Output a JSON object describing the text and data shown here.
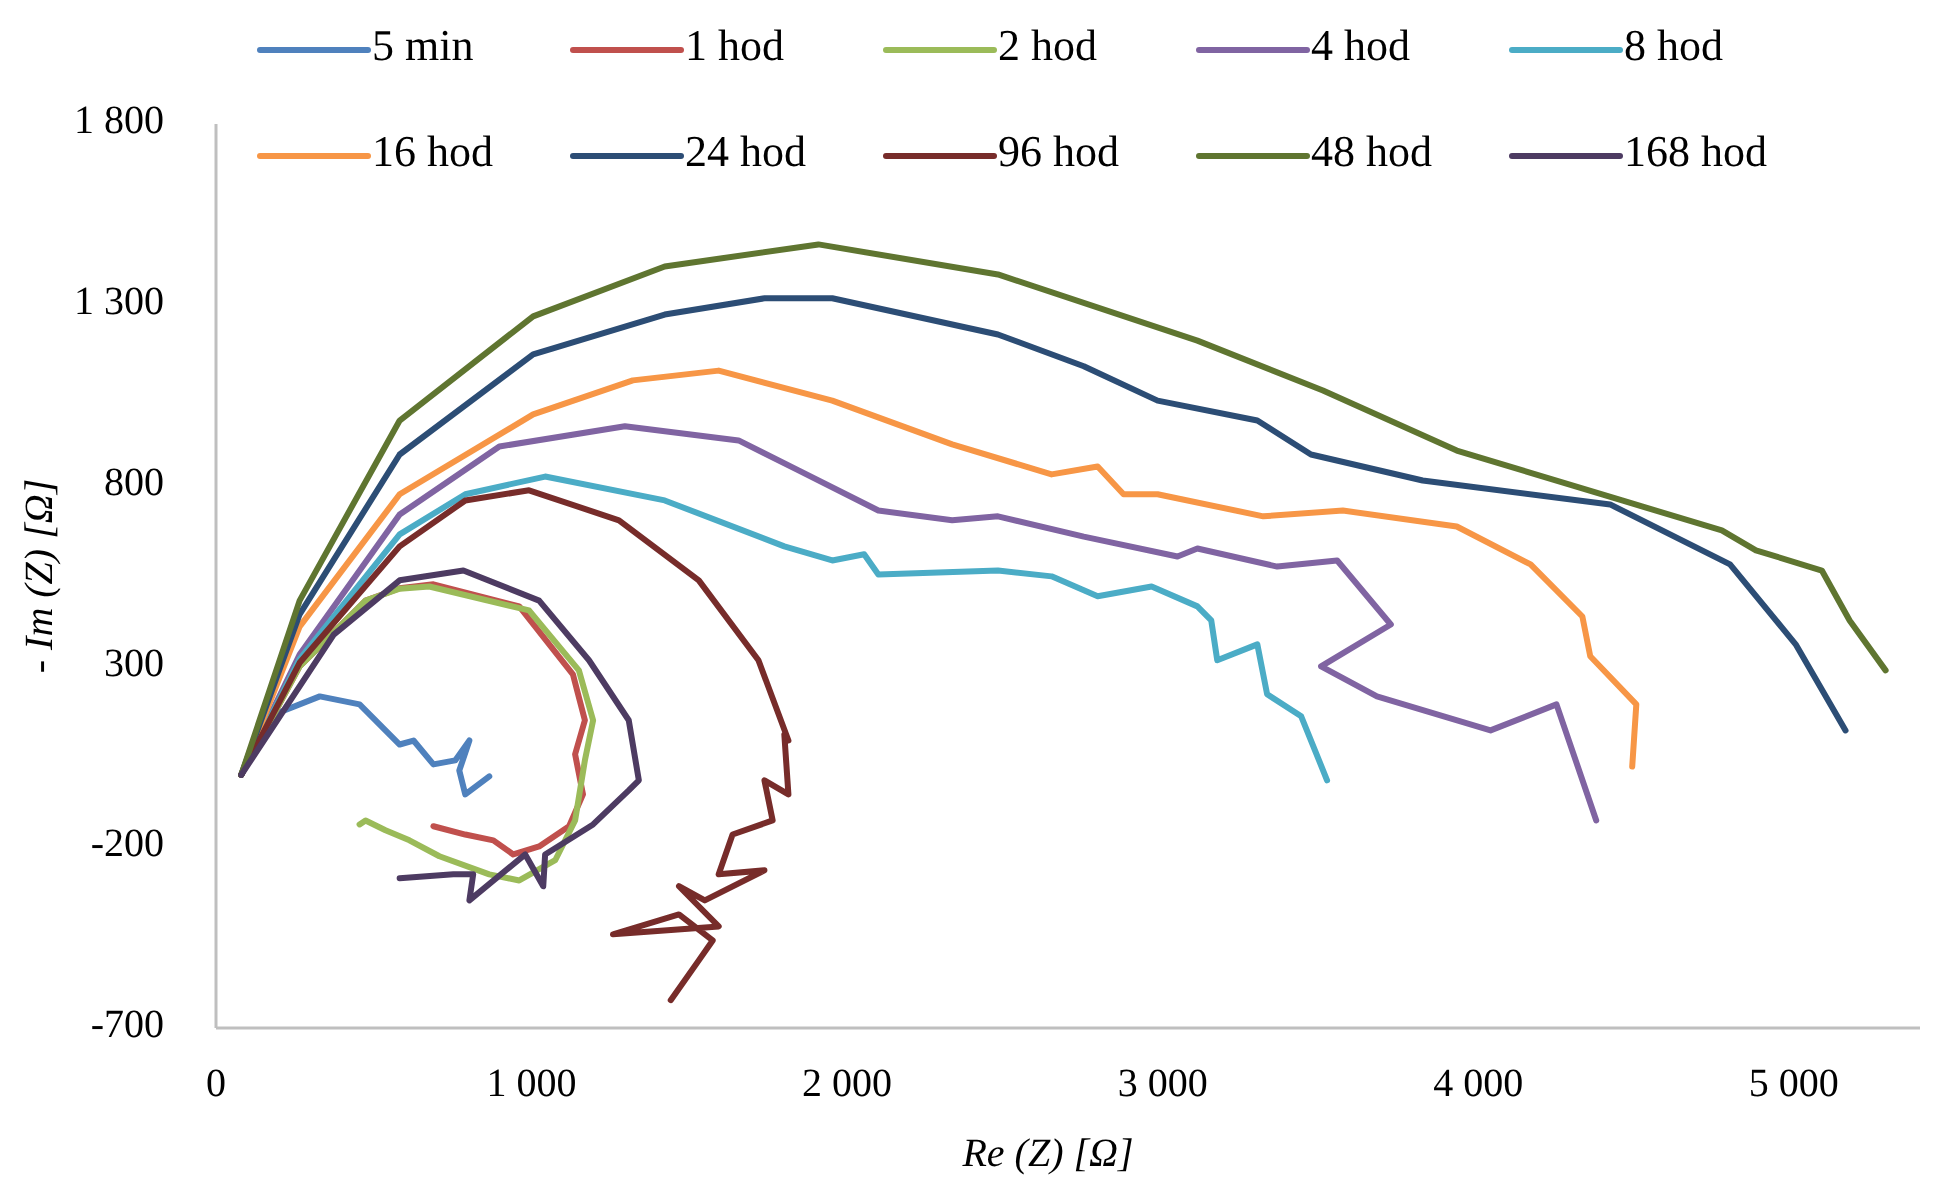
{
  "chart_data": {
    "type": "line",
    "xlabel": "Re (Z) [Ω]",
    "ylabel": "- Im (Z) [Ω]",
    "xlim": [
      0,
      5400
    ],
    "ylim": [
      -700,
      1800
    ],
    "xticks": [
      0,
      {
        "value": 1000,
        "label": "1 000"
      },
      {
        "value": 2000,
        "label": "2 000"
      },
      {
        "value": 3000,
        "label": "3 000"
      },
      {
        "value": 4000,
        "label": "4 000"
      },
      {
        "value": 5000,
        "label": "5 000"
      }
    ],
    "yticks": [
      -700,
      -200,
      300,
      800,
      {
        "value": 1300,
        "label": "1 300"
      },
      {
        "value": 1800,
        "label": "1 800"
      }
    ],
    "grid": false,
    "legend": "top",
    "marker": "none",
    "line_style": "solid",
    "series": [
      {
        "name": "5 min",
        "color": "#4f81bd",
        "x": [
          80,
          126,
          202,
          329,
          455,
          582,
          626,
          689,
          758,
          803,
          771,
          790,
          866
        ],
        "values": [
          0,
          95,
          173,
          217,
          195,
          84,
          95,
          29,
          40,
          95,
          12,
          -54,
          -4
        ]
      },
      {
        "name": "1 hod",
        "color": "#c0504d",
        "x": [
          80,
          265,
          474,
          582,
          689,
          961,
          1131,
          1169,
          1138,
          1163,
          1119,
          1024,
          942,
          879,
          790,
          689
        ],
        "values": [
          0,
          300,
          482,
          516,
          527,
          466,
          278,
          151,
          57,
          -54,
          -142,
          -198,
          -220,
          -181,
          -165,
          -142
        ]
      },
      {
        "name": "2 hod",
        "color": "#9bbb59",
        "x": [
          80,
          265,
          474,
          582,
          676,
          992,
          1150,
          1195,
          1169,
          1138,
          1075,
          961,
          866,
          708,
          613,
          537,
          474,
          455
        ],
        "values": [
          0,
          300,
          482,
          515,
          521,
          455,
          289,
          151,
          40,
          -126,
          -236,
          -292,
          -275,
          -225,
          -181,
          -153,
          -126,
          -137
        ]
      },
      {
        "name": "4 hod",
        "color": "#8064a2",
        "x": [
          80,
          265,
          582,
          898,
          1296,
          1656,
          1846,
          2099,
          2333,
          2478,
          2750,
          3047,
          3110,
          3363,
          3553,
          3723,
          3502,
          3679,
          4039,
          4248,
          4374
        ],
        "values": [
          0,
          333,
          720,
          908,
          964,
          925,
          842,
          731,
          704,
          715,
          659,
          604,
          626,
          576,
          593,
          416,
          300,
          217,
          123,
          195,
          -126
        ]
      },
      {
        "name": "8 hod",
        "color": "#4bacc6",
        "x": [
          80,
          265,
          582,
          790,
          1043,
          1422,
          1801,
          1953,
          2054,
          2099,
          2478,
          2648,
          2794,
          2965,
          3110,
          3154,
          3173,
          3300,
          3331,
          3439,
          3521
        ],
        "values": [
          0,
          320,
          665,
          776,
          825,
          759,
          632,
          593,
          610,
          554,
          565,
          549,
          494,
          521,
          466,
          427,
          317,
          361,
          223,
          162,
          -15
        ]
      },
      {
        "name": "16 hod",
        "color": "#f79646",
        "x": [
          80,
          265,
          582,
          1005,
          1321,
          1593,
          1953,
          2333,
          2648,
          2794,
          2876,
          2984,
          3319,
          3571,
          3932,
          4166,
          4330,
          4355,
          4501,
          4488
        ],
        "values": [
          0,
          410,
          776,
          997,
          1091,
          1118,
          1035,
          914,
          831,
          853,
          776,
          776,
          715,
          731,
          687,
          582,
          438,
          328,
          195,
          23
        ]
      },
      {
        "name": "24 hod",
        "color": "#2c4d75",
        "x": [
          80,
          265,
          582,
          1005,
          1422,
          1738,
          1953,
          2478,
          2750,
          2984,
          3300,
          3470,
          3824,
          4418,
          4798,
          5006,
          5164
        ],
        "values": [
          0,
          444,
          886,
          1163,
          1273,
          1318,
          1318,
          1218,
          1130,
          1035,
          980,
          886,
          814,
          748,
          582,
          361,
          123
        ]
      },
      {
        "name": "96 hod",
        "color": "#772c2a",
        "x": [
          80,
          265,
          582,
          790,
          992,
          1277,
          1530,
          1719,
          1814,
          1801,
          1814,
          1738,
          1764,
          1637,
          1593,
          1738,
          1549,
          1467,
          1593,
          1258,
          1467,
          1574,
          1530,
          1441
        ],
        "values": [
          0,
          310,
          632,
          759,
          787,
          704,
          538,
          317,
          95,
          112,
          -54,
          -15,
          -126,
          -165,
          -275,
          -264,
          -347,
          -308,
          -419,
          -441,
          -386,
          -458,
          -513,
          -623
        ]
      },
      {
        "name": "48 hod",
        "color": "#5f7530",
        "x": [
          80,
          265,
          582,
          1005,
          1422,
          1909,
          2478,
          3110,
          3508,
          3932,
          4456,
          4772,
          4880,
          5089,
          5177,
          5291
        ],
        "values": [
          0,
          482,
          980,
          1268,
          1406,
          1467,
          1384,
          1201,
          1063,
          897,
          759,
          676,
          621,
          565,
          427,
          289
        ]
      },
      {
        "name": "168 hod",
        "color": "#4d3b62",
        "x": [
          80,
          373,
          582,
          784,
          1024,
          1182,
          1308,
          1340,
          1308,
          1195,
          1043,
          1037,
          980,
          803,
          815,
          752,
          582
        ],
        "values": [
          0,
          388,
          538,
          565,
          482,
          317,
          151,
          -15,
          -43,
          -137,
          -220,
          -308,
          -220,
          -347,
          -275,
          -275,
          -286
        ]
      }
    ]
  }
}
